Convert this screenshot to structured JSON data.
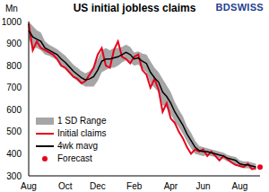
{
  "chart_data": {
    "type": "line",
    "title": "US initial jobless claims",
    "brand": "BDSWISS",
    "y_label": "Mn",
    "categories": [
      "Aug",
      null,
      null,
      null,
      null,
      null,
      null,
      null,
      null,
      "Oct",
      null,
      null,
      null,
      null,
      null,
      null,
      null,
      "Dec",
      null,
      null,
      null,
      null,
      null,
      null,
      null,
      null,
      "Feb",
      null,
      null,
      null,
      null,
      null,
      null,
      null,
      null,
      "Apr",
      null,
      null,
      null,
      null,
      null,
      null,
      null,
      "Jun",
      null,
      null,
      null,
      null,
      null,
      null,
      null,
      null,
      "Aug",
      null,
      null,
      null,
      null,
      null
    ],
    "series": [
      {
        "name": "1 SD Range",
        "type": "range",
        "color": "#a6a6a6",
        "low": [
          920,
          880,
          880,
          870,
          850,
          845,
          835,
          825,
          800,
          785,
          765,
          745,
          730,
          715,
          705,
          705,
          705,
          730,
          770,
          780,
          790,
          790,
          800,
          815,
          825,
          815,
          800,
          805,
          785,
          770,
          720,
          700,
          680,
          620,
          610,
          580,
          545,
          520,
          490,
          455,
          425,
          400,
          395,
          390,
          395,
          390,
          385,
          380,
          375,
          365,
          360,
          355,
          340,
          335,
          335,
          330,
          325,
          null
        ],
        "high": [
          1000,
          980,
          960,
          950,
          910,
          895,
          885,
          875,
          860,
          845,
          825,
          805,
          790,
          775,
          765,
          775,
          795,
          830,
          870,
          880,
          870,
          880,
          880,
          885,
          895,
          885,
          860,
          865,
          855,
          850,
          820,
          790,
          770,
          740,
          710,
          680,
          635,
          600,
          570,
          525,
          495,
          460,
          435,
          430,
          425,
          420,
          415,
          410,
          405,
          395,
          390,
          385,
          370,
          365,
          365,
          360,
          355,
          null
        ]
      },
      {
        "name": "Initial claims",
        "type": "line",
        "color": "#e8001c",
        "values": [
          990,
          870,
          910,
          880,
          870,
          860,
          850,
          830,
          800,
          790,
          770,
          750,
          740,
          720,
          730,
          760,
          790,
          850,
          880,
          800,
          790,
          870,
          910,
          840,
          830,
          810,
          840,
          850,
          780,
          760,
          700,
          740,
          690,
          590,
          630,
          560,
          540,
          500,
          470,
          430,
          400,
          420,
          410,
          420,
          390,
          410,
          390,
          370,
          390,
          375,
          360,
          350,
          345,
          340,
          355,
          330,
          335,
          null
        ]
      },
      {
        "name": "4wk mavg",
        "type": "line",
        "color": "#000000",
        "values": [
          960,
          930,
          920,
          910,
          880,
          870,
          860,
          850,
          830,
          815,
          795,
          775,
          760,
          745,
          735,
          740,
          750,
          780,
          820,
          830,
          830,
          835,
          840,
          850,
          860,
          850,
          830,
          835,
          820,
          810,
          770,
          745,
          725,
          680,
          660,
          630,
          590,
          560,
          530,
          490,
          460,
          430,
          415,
          410,
          410,
          405,
          400,
          395,
          390,
          380,
          375,
          370,
          355,
          350,
          350,
          345,
          340,
          null
        ]
      },
      {
        "name": "Forecast",
        "type": "scatter",
        "marker": "o",
        "color": "#e8001c",
        "values": [
          null,
          null,
          null,
          null,
          null,
          null,
          null,
          null,
          null,
          null,
          null,
          null,
          null,
          null,
          null,
          null,
          null,
          null,
          null,
          null,
          null,
          null,
          null,
          null,
          null,
          null,
          null,
          null,
          null,
          null,
          null,
          null,
          null,
          null,
          null,
          null,
          null,
          null,
          null,
          null,
          null,
          null,
          null,
          null,
          null,
          null,
          null,
          null,
          null,
          null,
          null,
          null,
          null,
          null,
          null,
          null,
          null,
          340
        ]
      }
    ],
    "ylim": [
      300,
      1000
    ],
    "yticks": [
      300,
      400,
      500,
      600,
      700,
      800,
      900,
      1000
    ],
    "grid": false,
    "legend": "lower left"
  }
}
